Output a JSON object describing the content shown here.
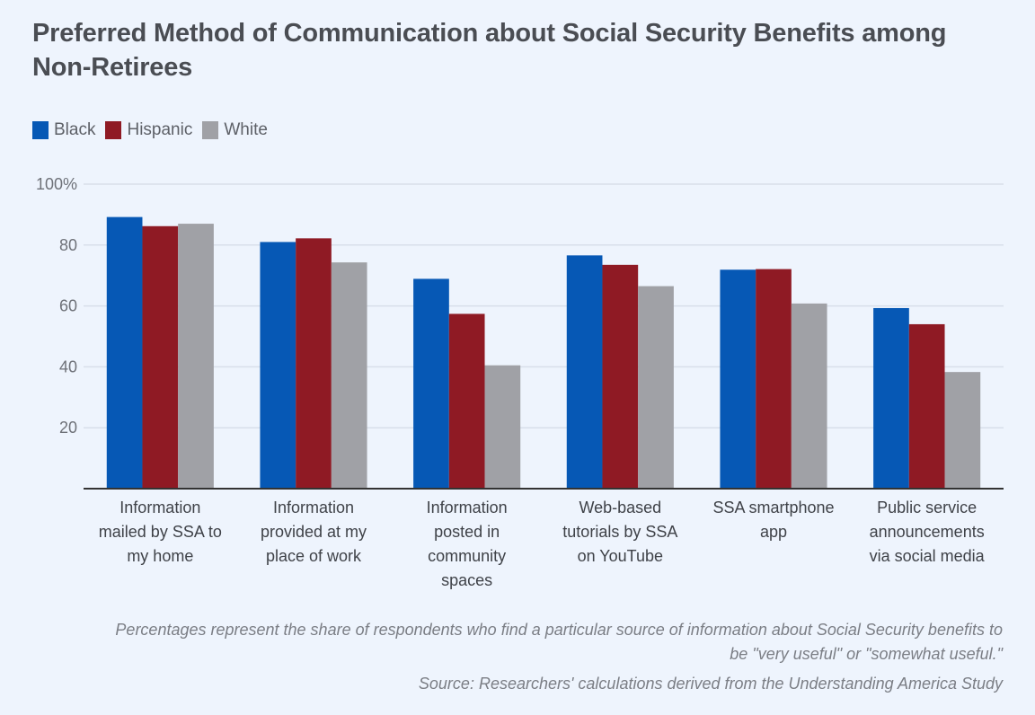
{
  "chart_data": {
    "type": "bar",
    "title": "Preferred Method of Communication about Social Security Benefits among Non-Retirees",
    "xlabel": "",
    "ylabel": "",
    "ylim": [
      0,
      100
    ],
    "yticks": [
      20,
      40,
      60,
      80,
      100
    ],
    "ytick_labels": [
      "20",
      "40",
      "60",
      "80",
      "100%"
    ],
    "grid": true,
    "legend_position": "top-left",
    "categories": [
      "Information mailed by SSA to my home",
      "Information provided at my place of work",
      "Information posted in community spaces",
      "Web-based tutorials by SSA on YouTube",
      "SSA smartphone app",
      "Public service announcements via social media"
    ],
    "category_lines": [
      [
        "Information",
        "mailed by SSA to",
        "my home"
      ],
      [
        "Information",
        "provided at my",
        "place of work"
      ],
      [
        "Information",
        "posted in",
        "community",
        "spaces"
      ],
      [
        "Web-based",
        "tutorials by SSA",
        "on YouTube"
      ],
      [
        "SSA smartphone",
        "app"
      ],
      [
        "Public service",
        "announcements",
        "via social media"
      ]
    ],
    "series": [
      {
        "name": "Black",
        "color": "#0658b5",
        "values": [
          89.2,
          81.0,
          68.9,
          76.6,
          71.9,
          59.3
        ]
      },
      {
        "name": "Hispanic",
        "color": "#8f1a24",
        "values": [
          86.2,
          82.2,
          57.4,
          73.5,
          72.1,
          54.0
        ]
      },
      {
        "name": "White",
        "color": "#a0a1a6",
        "values": [
          87.0,
          74.3,
          40.5,
          66.5,
          60.8,
          38.3
        ]
      }
    ]
  },
  "footnote": {
    "line1": "Percentages represent the share of respondents who find a particular source of information about Social Security benefits to",
    "line2": "be \"very useful\" or \"somewhat useful.\"",
    "source": "Source: Researchers' calculations derived from the Understanding America Study"
  }
}
